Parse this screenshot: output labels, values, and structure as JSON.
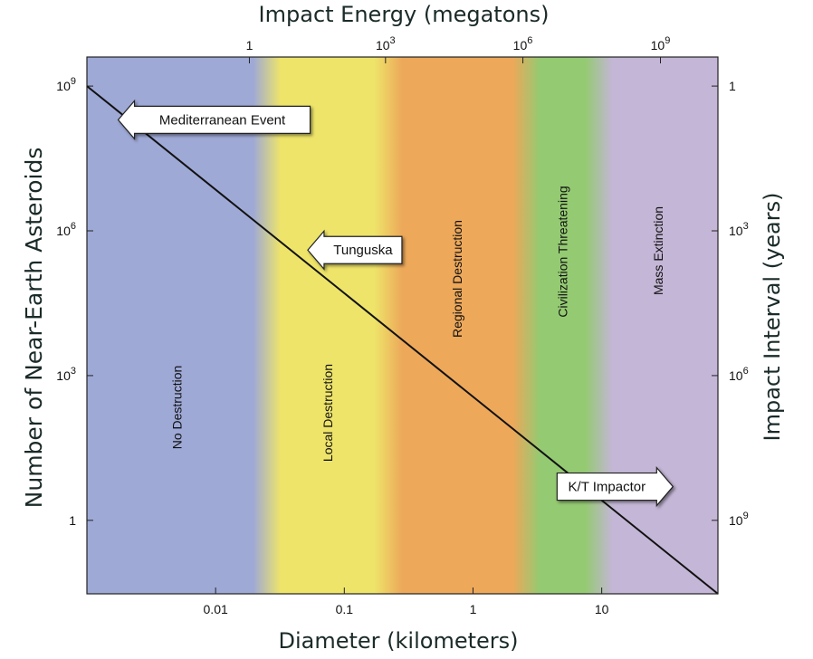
{
  "chart_data": {
    "type": "line",
    "title": "",
    "xlabel": "Diameter (kilometers)",
    "ylabel": "Number of Near-Earth Asteroids",
    "top_label": "Impact Energy (megatons)",
    "right_label": "Impact Interval (years)",
    "x_scale": "log",
    "y_scale": "log",
    "xlim_km": [
      0.001,
      80
    ],
    "ylim_count": [
      0.03,
      4000000000
    ],
    "grid": false,
    "legend": "none",
    "x_ticks": [
      {
        "value": 0.01,
        "label": "0.01"
      },
      {
        "value": 0.1,
        "label": "0.1"
      },
      {
        "value": 1,
        "label": "1"
      },
      {
        "value": 10,
        "label": "10"
      }
    ],
    "y_ticks": [
      {
        "value": 1000000000,
        "base": "10",
        "exp": "9"
      },
      {
        "value": 1000000,
        "base": "10",
        "exp": "6"
      },
      {
        "value": 1000,
        "base": "10",
        "exp": "3"
      },
      {
        "value": 1,
        "base": "1",
        "exp": ""
      }
    ],
    "top_ticks": [
      {
        "diameter_km": 0.0183,
        "base": "1",
        "exp": ""
      },
      {
        "diameter_km": 0.209,
        "base": "10",
        "exp": "3"
      },
      {
        "diameter_km": 2.44,
        "base": "10",
        "exp": "6"
      },
      {
        "diameter_km": 28.6,
        "base": "10",
        "exp": "9"
      }
    ],
    "right_ticks": [
      {
        "count": 1000000000,
        "base": "1",
        "exp": ""
      },
      {
        "count": 1000000,
        "base": "10",
        "exp": "3"
      },
      {
        "count": 1000,
        "base": "10",
        "exp": "6"
      },
      {
        "count": 1,
        "base": "10",
        "exp": "9"
      }
    ],
    "series": [
      {
        "x": [
          0.001,
          80
        ],
        "y": [
          1000000000,
          0.03
        ]
      }
    ],
    "zones": [
      {
        "label": "No Destruction",
        "from_km": 0.001,
        "to_km": 0.025,
        "color": "#9ea9d6"
      },
      {
        "label": "Local Destruction",
        "from_km": 0.025,
        "to_km": 0.22,
        "color": "#eee46a"
      },
      {
        "label": "Regional Destruction",
        "from_km": 0.22,
        "to_km": 2.6,
        "color": "#eda85a"
      },
      {
        "label": "Civilization Threatening",
        "from_km": 2.6,
        "to_km": 9.5,
        "color": "#94ca72"
      },
      {
        "label": "Mass Extinction",
        "from_km": 9.5,
        "to_km": 80,
        "color": "#c4b6d6"
      }
    ],
    "annotations": [
      {
        "text": "Mediterranean Event",
        "direction": "left",
        "x_km": 0.00175,
        "y_count": 200000000
      },
      {
        "text": "Tunguska",
        "direction": "left",
        "x_km": 0.052,
        "y_count": 400000
      },
      {
        "text": "K/T Impactor",
        "direction": "right",
        "x_km": 4.5,
        "y_count": 5
      }
    ]
  }
}
